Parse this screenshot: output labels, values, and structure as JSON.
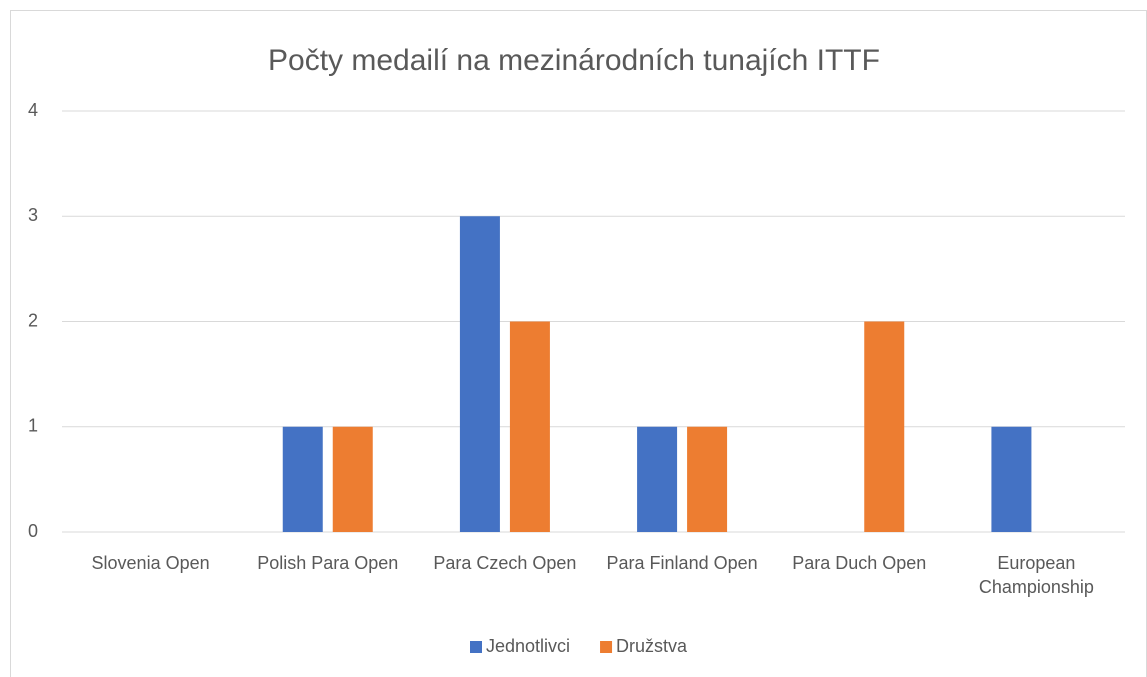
{
  "chart_data": {
    "type": "bar",
    "title": "Počty medailí na mezinárodních tunajích ITTF",
    "categories": [
      "Slovenia Open",
      "Polish Para Open",
      "Para Czech Open",
      "Para Finland Open",
      "Para Duch Open",
      "European Championship"
    ],
    "series": [
      {
        "name": "Jednotlivci",
        "color": "#4472c4",
        "values": [
          0,
          1,
          3,
          1,
          0,
          1
        ]
      },
      {
        "name": "Družstva",
        "color": "#ed7d31",
        "values": [
          0,
          1,
          2,
          1,
          2,
          0
        ]
      }
    ],
    "ylim": [
      0,
      4
    ],
    "yticks": [
      0,
      1,
      2,
      3,
      4
    ],
    "grid": true,
    "legend": "bottom"
  }
}
